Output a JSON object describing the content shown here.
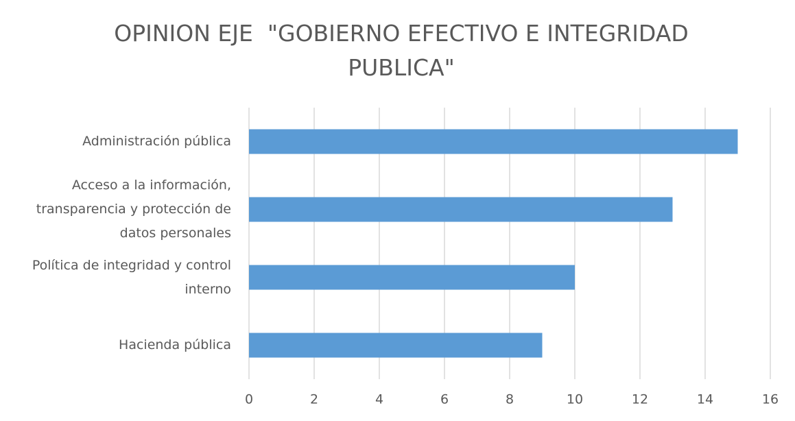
{
  "chart_data": {
    "type": "barh",
    "title": "OPINION EJE  \"GOBIERNO EFECTIVO E INTEGRIDAD PUBLICA\"",
    "categories": [
      "Administración pública",
      "Acceso a la información, transparencia y protección de datos personales",
      "Política de integridad y control interno",
      "Hacienda pública"
    ],
    "values": [
      15,
      13,
      10,
      9
    ],
    "color": "#5b9bd5",
    "xlim": [
      0,
      16
    ],
    "xticks": [
      0,
      2,
      4,
      6,
      8,
      10,
      12,
      14,
      16
    ],
    "grid": true
  }
}
